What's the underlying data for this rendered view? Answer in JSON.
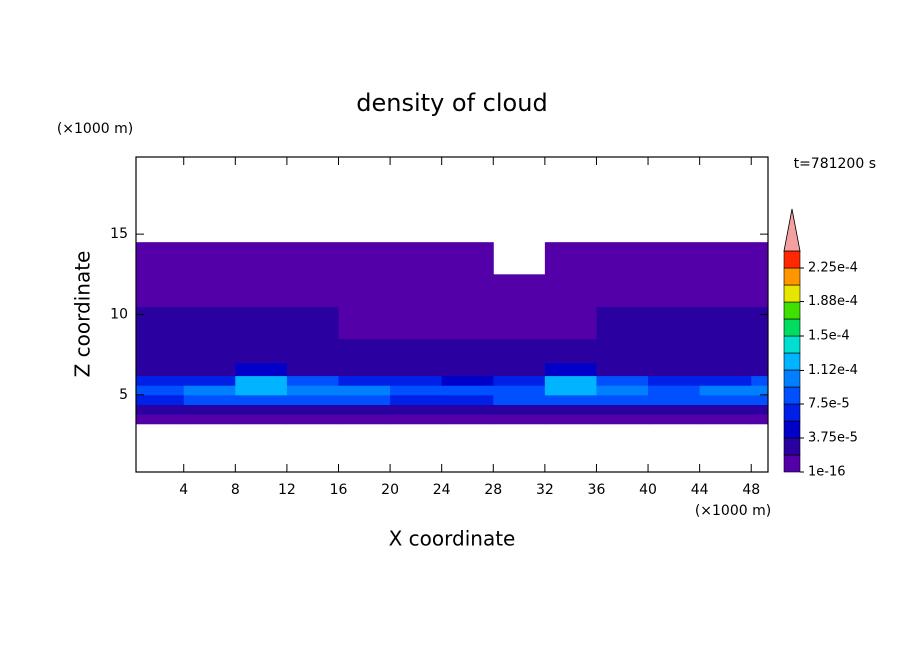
{
  "chart_data": {
    "type": "contour",
    "title": "density of cloud",
    "x_label": "X coordinate",
    "y_label": "Z coordinate",
    "x_unit": "(×1000 m)",
    "y_unit": "(×1000 m)",
    "annotation": "t=781200 s",
    "xlim": [
      0.3,
      49.3
    ],
    "ylim": [
      0.2,
      19.8
    ],
    "xticks": [
      4,
      8,
      12,
      16,
      20,
      24,
      28,
      32,
      36,
      40,
      44,
      48
    ],
    "yticks": [
      5,
      10,
      15
    ],
    "x_edges": [
      0.3,
      4,
      8,
      12,
      16,
      20,
      24,
      28,
      32,
      36,
      40,
      44,
      48,
      49.3
    ],
    "z_edges": [
      3.2,
      3.8,
      4.4,
      5.0,
      5.6,
      6.2,
      7.0,
      8.5,
      10.5,
      12.5,
      14.5
    ],
    "values": [
      [
        5e-06,
        5e-06,
        5e-06,
        5e-06,
        5e-06,
        5e-06,
        5e-06,
        5e-06,
        5e-06,
        5e-06,
        5e-06,
        5e-06,
        5e-06
      ],
      [
        3e-05,
        3e-05,
        3e-05,
        3e-05,
        3e-05,
        3e-05,
        3e-05,
        3e-05,
        3e-05,
        3e-05,
        3e-05,
        3e-05,
        3e-05
      ],
      [
        7e-05,
        8e-05,
        9e-05,
        9e-05,
        8e-05,
        7e-05,
        7e-05,
        8e-05,
        9e-05,
        9e-05,
        8e-05,
        8e-05,
        9e-05
      ],
      [
        9e-05,
        0.0001,
        0.00013,
        0.00011,
        9.5e-05,
        9e-05,
        8e-05,
        9e-05,
        0.00013,
        0.00011,
        9e-05,
        9.5e-05,
        0.00011
      ],
      [
        6e-05,
        7e-05,
        0.00012,
        8e-05,
        6e-05,
        6e-05,
        5e-05,
        6e-05,
        0.00012,
        8e-05,
        6e-05,
        6e-05,
        8e-05
      ],
      [
        3e-05,
        3e-05,
        4e-05,
        3e-05,
        3e-05,
        3e-05,
        3e-05,
        3e-05,
        4e-05,
        3e-05,
        3e-05,
        3e-05,
        3e-05
      ],
      [
        2.5e-05,
        2.5e-05,
        2.5e-05,
        2.5e-05,
        2.5e-05,
        2.5e-05,
        2e-05,
        2.5e-05,
        2.5e-05,
        2.5e-05,
        2.5e-05,
        2.5e-05,
        2.5e-05
      ],
      [
        2e-05,
        2e-05,
        2e-05,
        2e-05,
        1.5e-05,
        5e-06,
        5e-06,
        5e-06,
        1e-05,
        2e-05,
        2e-05,
        2e-05,
        2e-05
      ],
      [
        5e-06,
        5e-06,
        5e-06,
        5e-06,
        5e-06,
        5e-06,
        5e-06,
        5e-06,
        5e-06,
        5e-06,
        5e-06,
        5e-06,
        5e-06
      ],
      [
        5e-06,
        5e-06,
        5e-06,
        5e-06,
        5e-06,
        5e-06,
        5e-06,
        null,
        5e-06,
        5e-06,
        5e-06,
        5e-06,
        5e-06
      ]
    ],
    "clim": [
      0,
      0.00024375
    ],
    "colors": [
      "#5400a8",
      "#2a00a0",
      "#0000c8",
      "#0020e8",
      "#0050ff",
      "#0080ff",
      "#00b4ff",
      "#00e0d0",
      "#00dc60",
      "#40e000",
      "#e6e600",
      "#ff9600",
      "#ff2800"
    ],
    "extend_color": "#f4a0a0",
    "cticks": [
      {
        "value": 1e-16,
        "label": "1e-16"
      },
      {
        "value": 3.75e-05,
        "label": "3.75e-5"
      },
      {
        "value": 7.5e-05,
        "label": "7.5e-5"
      },
      {
        "value": 0.000112,
        "label": "1.12e-4"
      },
      {
        "value": 0.00015,
        "label": "1.5e-4"
      },
      {
        "value": 0.000188,
        "label": "1.88e-4"
      },
      {
        "value": 0.000225,
        "label": "2.25e-4"
      }
    ]
  }
}
